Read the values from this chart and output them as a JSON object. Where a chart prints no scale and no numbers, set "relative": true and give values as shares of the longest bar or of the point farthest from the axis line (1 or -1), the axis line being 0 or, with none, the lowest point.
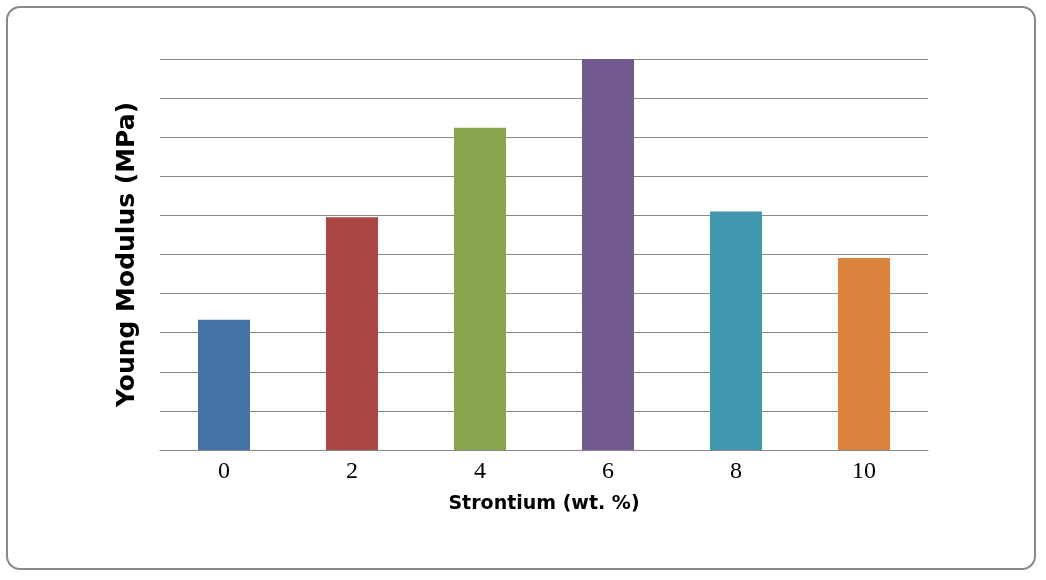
{
  "chart_data": {
    "type": "bar",
    "xlabel": "Strontium (wt. %)",
    "ylabel": "Young Modulus (MPa)",
    "categories": [
      "0",
      "2",
      "4",
      "6",
      "8",
      "10"
    ],
    "values": [
      0.333,
      0.595,
      0.824,
      1,
      0.61,
      0.491
    ],
    "colors": [
      "#4572a7",
      "#aa4643",
      "#89a54e",
      "#71588f",
      "#4198af",
      "#db843d"
    ],
    "relative": true,
    "grid": "y"
  }
}
